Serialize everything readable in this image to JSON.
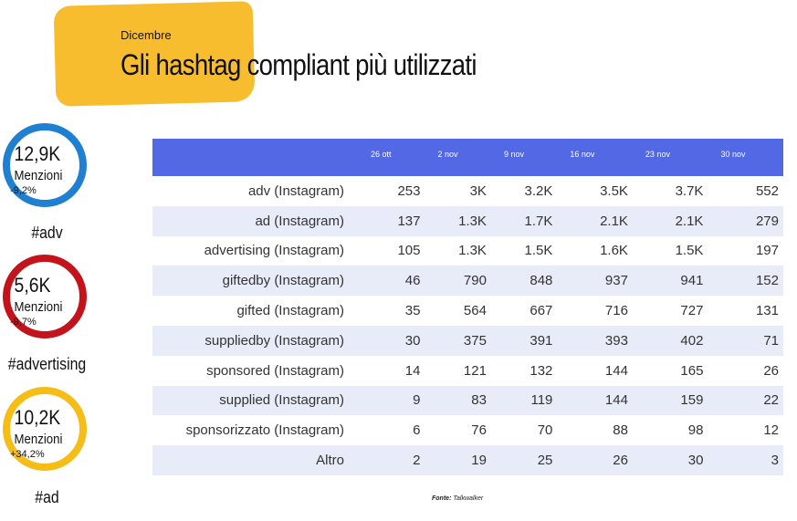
{
  "header": {
    "eyebrow": "Dicembre",
    "title": "Gli hashtag compliant più utilizzati",
    "accent": "#f8bd2f"
  },
  "kpis": [
    {
      "value": "12,9K",
      "label": "Menzioni",
      "change": "-9,2%",
      "tag": "#adv",
      "color": "#1f7fd0"
    },
    {
      "value": "5,6K",
      "label": "Menzioni",
      "change": "-9,7%",
      "tag": "#advertising",
      "color": "#c3141b"
    },
    {
      "value": "10,2K",
      "label": "Menzioni",
      "change": "+34,2%",
      "tag": "#ad",
      "color": "#f6bd16"
    }
  ],
  "table": {
    "header_color": "#5268e5",
    "columns": [
      "",
      "26 ott",
      "2 nov",
      "9 nov",
      "16 nov",
      "23 nov",
      "30 nov"
    ],
    "rows": [
      [
        "adv (Instagram)",
        "253",
        "3K",
        "3.2K",
        "3.5K",
        "3.7K",
        "552"
      ],
      [
        "ad (Instagram)",
        "137",
        "1.3K",
        "1.7K",
        "2.1K",
        "2.1K",
        "279"
      ],
      [
        "advertising (Instagram)",
        "105",
        "1.3K",
        "1.5K",
        "1.6K",
        "1.5K",
        "197"
      ],
      [
        "giftedby (Instagram)",
        "46",
        "790",
        "848",
        "937",
        "941",
        "152"
      ],
      [
        "gifted (Instagram)",
        "35",
        "564",
        "667",
        "716",
        "727",
        "131"
      ],
      [
        "suppliedby (Instagram)",
        "30",
        "375",
        "391",
        "393",
        "402",
        "71"
      ],
      [
        "sponsored (Instagram)",
        "14",
        "121",
        "132",
        "144",
        "165",
        "26"
      ],
      [
        "supplied (Instagram)",
        "9",
        "83",
        "119",
        "144",
        "159",
        "22"
      ],
      [
        "sponsorizzato (Instagram)",
        "6",
        "76",
        "70",
        "88",
        "98",
        "12"
      ],
      [
        "Altro",
        "2",
        "19",
        "25",
        "26",
        "30",
        "3"
      ]
    ]
  },
  "source": {
    "label": "Fonte",
    "name": "Talkwalker"
  }
}
